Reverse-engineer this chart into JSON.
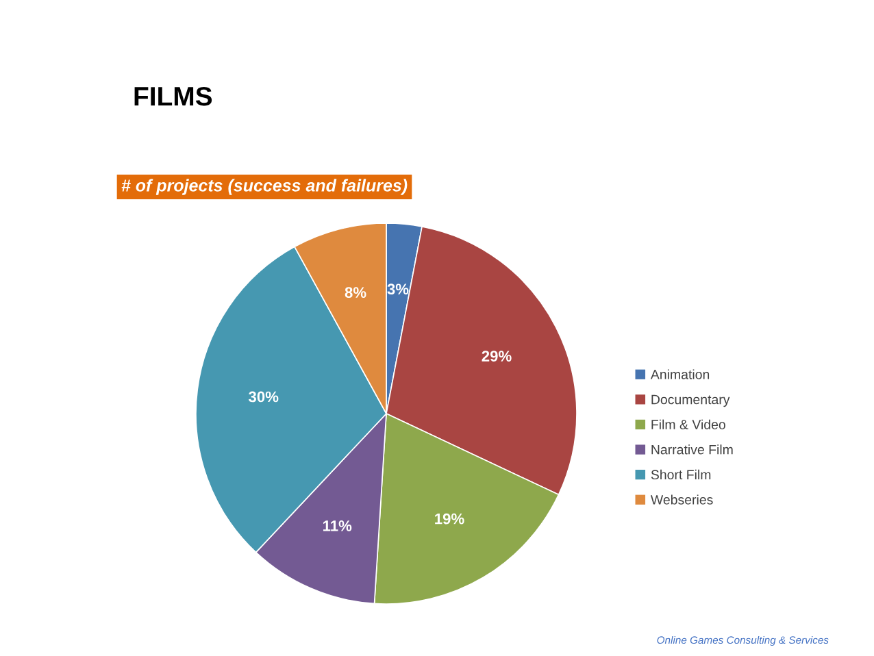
{
  "chart_data": {
    "type": "pie",
    "title": "FILMS",
    "subtitle": "# of projects (success and failures)",
    "categories": [
      "Animation",
      "Documentary",
      "Film & Video",
      "Narrative Film",
      "Short Film",
      "Webseries"
    ],
    "values": [
      3,
      29,
      19,
      11,
      30,
      8
    ],
    "value_labels": [
      "3%",
      "29%",
      "19%",
      "11%",
      "30%",
      "8%"
    ],
    "colors": [
      "#4674b0",
      "#a94542",
      "#8ea84c",
      "#735a93",
      "#4698b1",
      "#df8a3e"
    ],
    "legend": "right",
    "annotations": [
      "Online Games Consulting & Services"
    ]
  }
}
